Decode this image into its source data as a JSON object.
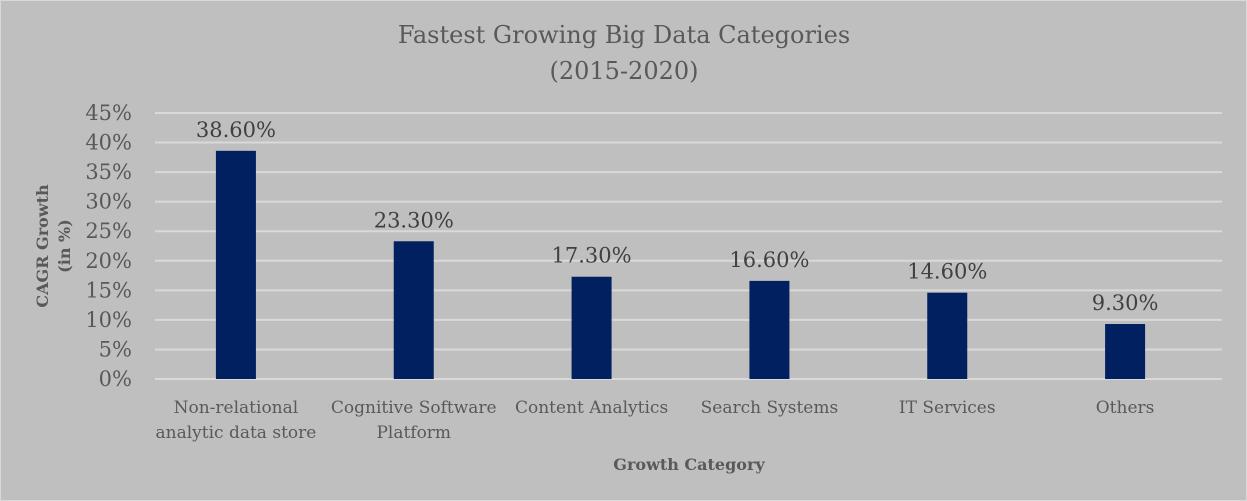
{
  "chart_data": {
    "type": "bar",
    "title": [
      "Fastest Growing Big Data Categories",
      "(2015-2020)"
    ],
    "xlabel": "Growth Category",
    "ylabel": [
      "CAGR Growth",
      "(in %)"
    ],
    "categories": [
      [
        "Non-relational",
        "analytic data store"
      ],
      [
        "Cognitive Software",
        "Platform"
      ],
      [
        "Content Analytics"
      ],
      [
        "Search Systems"
      ],
      [
        "IT Services"
      ],
      [
        "Others"
      ]
    ],
    "values": [
      38.6,
      23.3,
      17.3,
      16.6,
      14.6,
      9.3
    ],
    "data_labels": [
      "38.60%",
      "23.30%",
      "17.30%",
      "16.60%",
      "14.60%",
      "9.30%"
    ],
    "yticks": [
      "0%",
      "5%",
      "10%",
      "15%",
      "20%",
      "25%",
      "30%",
      "35%",
      "40%",
      "45%"
    ],
    "ylim": [
      0,
      45
    ],
    "grid": true,
    "legend": "none",
    "colors": {
      "bar": "#002060",
      "background": "#bfbfbf",
      "grid": "#d9d9d9"
    }
  }
}
